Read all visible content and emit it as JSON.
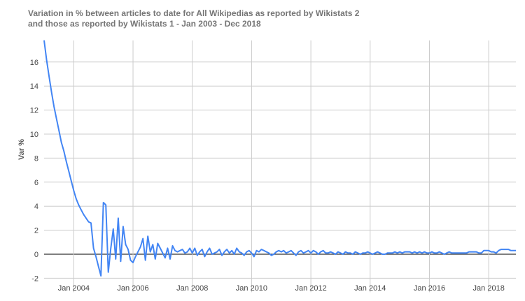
{
  "chart_data": {
    "type": "line",
    "title_line1": "Variation in % between articles to date for All Wikipedias as reported by Wikistats 2",
    "title_line2": "and those as reported by Wikistats 1 -  Jan 2003 - Dec 2018",
    "xlabel": "",
    "ylabel": "Var %",
    "ylim": [
      -2,
      17.8
    ],
    "yticks": [
      -2,
      0,
      2,
      4,
      6,
      8,
      10,
      12,
      14,
      16
    ],
    "xticks": [
      "Jan 2004",
      "Jan 2006",
      "Jan 2008",
      "Jan 2010",
      "Jan 2012",
      "Jan 2014",
      "Jan 2016",
      "Jan 2018"
    ],
    "xtick_dates": [
      "2004-01",
      "2006-01",
      "2008-01",
      "2010-01",
      "2012-01",
      "2014-01",
      "2016-01",
      "2018-01"
    ],
    "xlim": [
      "2003-01",
      "2018-12"
    ],
    "grid": true,
    "line_color": "#4285f4",
    "frequency": "monthly",
    "series": [
      {
        "values_by_year": {
          "2003": [
            17.8,
            16.2,
            14.8,
            13.5,
            12.3,
            11.3,
            10.3,
            9.3,
            8.6,
            7.7,
            6.9,
            6.1
          ],
          "2004": [
            5.3,
            4.6,
            4.1,
            3.7,
            3.3,
            3.0,
            2.7,
            2.6,
            0.5,
            -0.2,
            -1.0,
            -1.8
          ],
          "2005": [
            4.3,
            4.1,
            -1.5,
            0.5,
            2.1,
            -0.4,
            3.0,
            -0.6,
            2.3,
            0.8,
            0.4,
            -0.5
          ],
          "2006": [
            -0.7,
            -0.2,
            0.2,
            0.6,
            1.3,
            -0.5,
            1.5,
            0.2,
            0.8,
            -0.4,
            0.9,
            0.5
          ],
          "2007": [
            0.1,
            -0.3,
            0.5,
            -0.4,
            0.7,
            0.3,
            0.2,
            0.3,
            0.4,
            0.1,
            0.2,
            0.5
          ],
          "2008": [
            0.1,
            0.5,
            -0.1,
            0.2,
            0.4,
            -0.2,
            0.2,
            0.5,
            0.0,
            0.1,
            0.2,
            0.4
          ],
          "2009": [
            -0.1,
            0.2,
            0.4,
            0.1,
            0.3,
            0.0,
            0.5,
            0.2,
            0.1,
            -0.1,
            0.2,
            0.3
          ],
          "2010": [
            0.1,
            -0.2,
            0.3,
            0.2,
            0.4,
            0.3,
            0.2,
            0.1,
            -0.1,
            0.0,
            0.2,
            0.3
          ],
          "2011": [
            0.2,
            0.3,
            0.1,
            0.2,
            0.3,
            0.1,
            -0.1,
            0.2,
            0.3,
            0.1,
            0.2,
            0.3
          ],
          "2012": [
            0.1,
            0.3,
            0.2,
            0.0,
            0.2,
            0.3,
            0.1,
            0.1,
            0.2,
            0.1,
            0.0,
            0.2
          ],
          "2013": [
            0.1,
            0.0,
            0.2,
            0.1,
            0.1,
            0.0,
            0.2,
            0.1,
            0.0,
            0.1,
            0.1,
            0.2
          ],
          "2014": [
            0.1,
            0.0,
            0.1,
            0.2,
            0.1,
            0.0,
            0.0,
            0.1,
            0.1,
            0.1,
            0.2,
            0.1
          ],
          "2015": [
            0.2,
            0.1,
            0.2,
            0.2,
            0.2,
            0.1,
            0.2,
            0.1,
            0.2,
            0.1,
            0.2,
            0.1
          ],
          "2016": [
            0.1,
            0.2,
            0.1,
            0.1,
            0.2,
            0.1,
            0.0,
            0.1,
            0.2,
            0.1,
            0.1,
            0.1
          ],
          "2017": [
            0.1,
            0.1,
            0.1,
            0.1,
            0.2,
            0.2,
            0.2,
            0.2,
            0.1,
            0.1,
            0.3,
            0.3
          ],
          "2018": [
            0.3,
            0.2,
            0.2,
            0.1,
            0.3,
            0.4,
            0.4,
            0.4,
            0.4,
            0.3,
            0.3,
            0.3
          ]
        }
      }
    ]
  }
}
